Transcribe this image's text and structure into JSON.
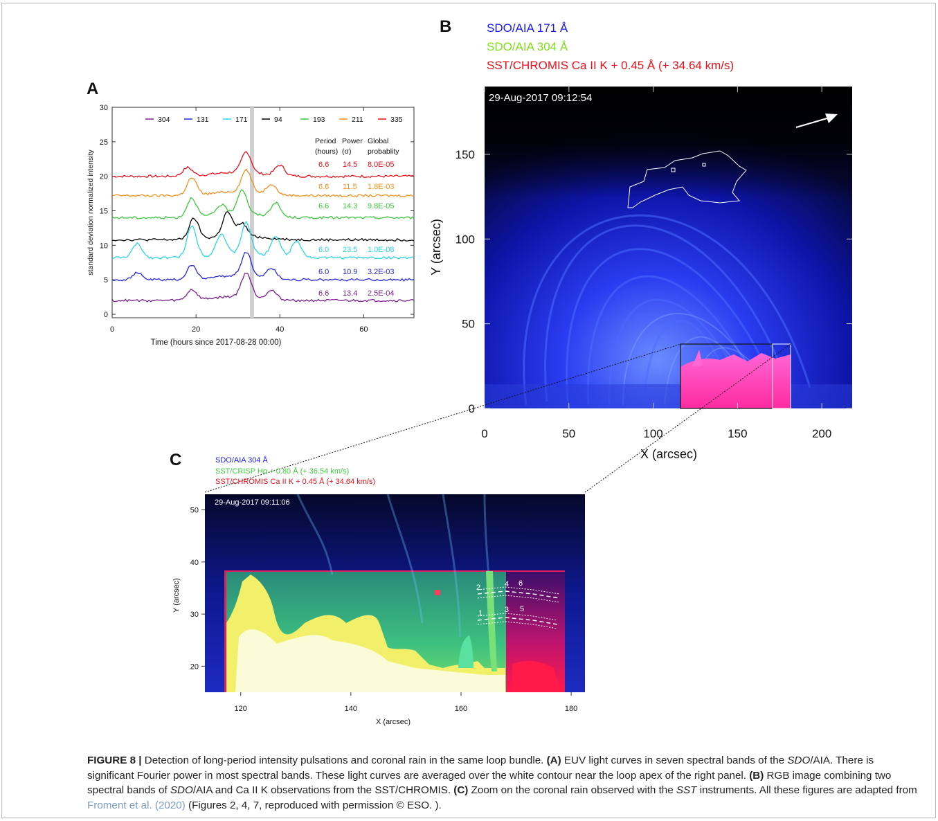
{
  "panels": {
    "a": {
      "letter": "A",
      "xlabel": "Time (hours since 2017-08-28 00:00)",
      "ylabel": "standard deviation normalized intensity",
      "xticks": [
        "0",
        "20",
        "40",
        "60"
      ],
      "yticks": [
        "0",
        "5",
        "10",
        "15",
        "20",
        "25",
        "30"
      ],
      "legend": [
        "304",
        "131",
        "171",
        "94",
        "193",
        "211",
        "335"
      ],
      "table_header": [
        "Period",
        "Power",
        "Global",
        "(hours)",
        "(σ)",
        "probablity"
      ],
      "rows": [
        {
          "band": "335",
          "color": "#e8101a",
          "period": "6.6",
          "power": "14.5",
          "prob": "8.0E-05"
        },
        {
          "band": "211",
          "color": "#f2901e",
          "period": "6.6",
          "power": "11.5",
          "prob": "1.8E-03"
        },
        {
          "band": "193",
          "color": "#3cc83c",
          "period": "6.6",
          "power": "14.3",
          "prob": "9.8E-05"
        },
        {
          "band": "94",
          "color": "#000000",
          "period": "",
          "power": "",
          "prob": ""
        },
        {
          "band": "171",
          "color": "#2ad6e6",
          "period": "6.0",
          "power": "23.5",
          "prob": "1.0E-08"
        },
        {
          "band": "131",
          "color": "#2626d8",
          "period": "6.0",
          "power": "10.9",
          "prob": "3.2E-03"
        },
        {
          "band": "304",
          "color": "#7a1e8e",
          "period": "6.6",
          "power": "13.4",
          "prob": "2.5E-04"
        }
      ]
    },
    "b": {
      "letter": "B",
      "legend": [
        "SDO/AIA 171 Å",
        "SDO/AIA 304 Å",
        "SST/CHROMIS Ca II K + 0.45 Å (+ 34.64 km/s)"
      ],
      "legend_colors": [
        "#1a1ae6",
        "#7fe01a",
        "#e8101a"
      ],
      "timestamp": "29-Aug-2017 09:12:54",
      "xlabel": "X (arcsec)",
      "ylabel": "Y (arcsec)",
      "xticks": [
        "0",
        "50",
        "100",
        "150",
        "200"
      ],
      "yticks": [
        "0",
        "50",
        "100",
        "150"
      ]
    },
    "c": {
      "letter": "C",
      "legend": [
        "SDO/AIA 304 Å",
        "SST/CRISP Hα + 0.80 Å (+ 36.54 km/s)",
        "SST/CHROMIS Ca II K + 0.45 Å (+ 34.64 km/s)"
      ],
      "legend_colors": [
        "#1a1ae6",
        "#3ccf3c",
        "#e8101a"
      ],
      "timestamp": "29-Aug-2017 09:11:06",
      "xlabel": "X (arcsec)",
      "ylabel": "Y (arcsec)",
      "xticks": [
        "120",
        "140",
        "160",
        "180"
      ],
      "yticks": [
        "20",
        "30",
        "40",
        "50"
      ],
      "slit_labels": [
        "1",
        "2",
        "3",
        "4",
        "5",
        "6"
      ]
    }
  },
  "caption": {
    "label": "FIGURE 8 |",
    "t1": " Detection of long-period intensity pulsations and coronal rain in the same loop bundle. ",
    "a": "(A)",
    "t2": " EUV light curves in seven spectral bands of the ",
    "sdo1": "SDO",
    "t3": "/AIA. There is significant Fourier power in most spectral bands. These light curves are averaged over the white contour near the loop apex of the right panel. ",
    "b": "(B)",
    "t4": " RGB image combining two spectral bands of ",
    "sdo2": "SDO",
    "t5": "/AIA and Ca II K observations from the SST/CHROMIS. ",
    "c": "(C)",
    "t6": " Zoom on the coronal rain observed with the ",
    "sst": "SST",
    "t7": " instruments. All these figures are adapted from ",
    "ref": "Froment et al. (2020)",
    "t8": " (Figures 2, 4, 7, reproduced with permission © ESO. )."
  }
}
